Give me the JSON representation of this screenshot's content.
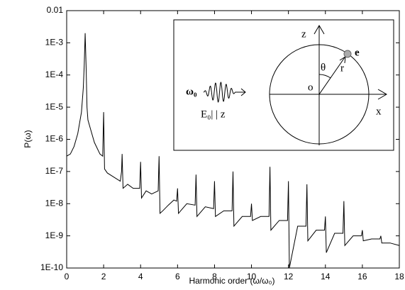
{
  "chart_data": {
    "type": "line",
    "x_label": "Harmonic order (ω/ω₀)",
    "y_label": "P(ω)",
    "color": "#000000",
    "yscale": "log",
    "grid": false,
    "xlim": [
      0,
      18
    ],
    "xticks": [
      0,
      2,
      4,
      6,
      8,
      10,
      12,
      14,
      16,
      18
    ],
    "ylim": [
      1e-10,
      0.01
    ],
    "yticks": [
      0.01,
      {
        "value": 0.001,
        "label": "1E-3"
      },
      {
        "value": 0.0001,
        "label": "1E-4"
      },
      {
        "value": 1e-05,
        "label": "1E-5"
      },
      {
        "value": 1e-06,
        "label": "1E-6"
      },
      {
        "value": 1e-07,
        "label": "1E-7"
      },
      {
        "value": 1e-08,
        "label": "1E-8"
      },
      {
        "value": 1e-09,
        "label": "1E-9"
      },
      {
        "value": 1e-10,
        "label": "1E-10"
      }
    ],
    "x": [
      0,
      0.2,
      0.4,
      0.6,
      0.8,
      0.9,
      0.95,
      1.0,
      1.05,
      1.1,
      1.15,
      1.3,
      1.5,
      1.8,
      1.95,
      2.0,
      2.05,
      2.2,
      2.5,
      2.9,
      2.97,
      3.0,
      3.05,
      3.3,
      3.6,
      3.95,
      4.0,
      4.05,
      4.3,
      4.6,
      4.95,
      5.0,
      5.05,
      5.2,
      5.5,
      5.8,
      5.95,
      6.0,
      6.05,
      6.5,
      6.95,
      7.0,
      7.05,
      7.5,
      7.95,
      8.0,
      8.05,
      8.5,
      8.95,
      9.0,
      9.05,
      9.5,
      9.95,
      10.0,
      10.05,
      10.5,
      10.95,
      11.0,
      11.05,
      11.5,
      11.95,
      12.0,
      12.05,
      12.5,
      12.95,
      13.0,
      13.05,
      13.5,
      13.95,
      14.0,
      14.05,
      14.5,
      14.95,
      15.0,
      15.05,
      15.5,
      15.95,
      16.0,
      16.05,
      16.5,
      16.95,
      17.0,
      17.05,
      17.5,
      18.0
    ],
    "values": [
      3e-07,
      3.5e-07,
      6e-07,
      1.5e-06,
      7e-06,
      4e-05,
      0.0002,
      0.002,
      0.0002,
      1e-05,
      4e-06,
      2e-06,
      8e-07,
      3.5e-07,
      3e-07,
      7e-06,
      1.2e-07,
      9e-08,
      7e-08,
      5e-08,
      1e-07,
      3.5e-07,
      3e-08,
      4e-08,
      3e-08,
      3e-08,
      2e-07,
      1.5e-08,
      2.5e-08,
      2e-08,
      2.5e-08,
      3e-07,
      5e-09,
      6e-09,
      9e-09,
      1.3e-08,
      1.2e-08,
      3e-08,
      5e-09,
      1e-08,
      9e-09,
      8e-08,
      4e-09,
      8e-09,
      7e-09,
      5e-08,
      4e-09,
      6e-09,
      6e-09,
      1e-07,
      2e-09,
      4e-09,
      4e-09,
      1e-08,
      3e-09,
      4e-09,
      4e-09,
      1.4e-07,
      1.5e-09,
      3e-09,
      3e-09,
      5e-08,
      1e-10,
      2e-09,
      2e-09,
      4e-08,
      7e-10,
      1.5e-09,
      1.5e-09,
      4e-09,
      3e-10,
      1.2e-09,
      1.2e-09,
      1.2e-08,
      5e-10,
      1e-09,
      1e-09,
      1.5e-09,
      7e-10,
      8e-10,
      8e-10,
      1e-09,
      6e-10,
      6e-10,
      5e-10
    ],
    "annotations": [
      "ω₀",
      "E₀| | z",
      "z",
      "x",
      "o",
      "θ",
      "r",
      "e"
    ]
  }
}
